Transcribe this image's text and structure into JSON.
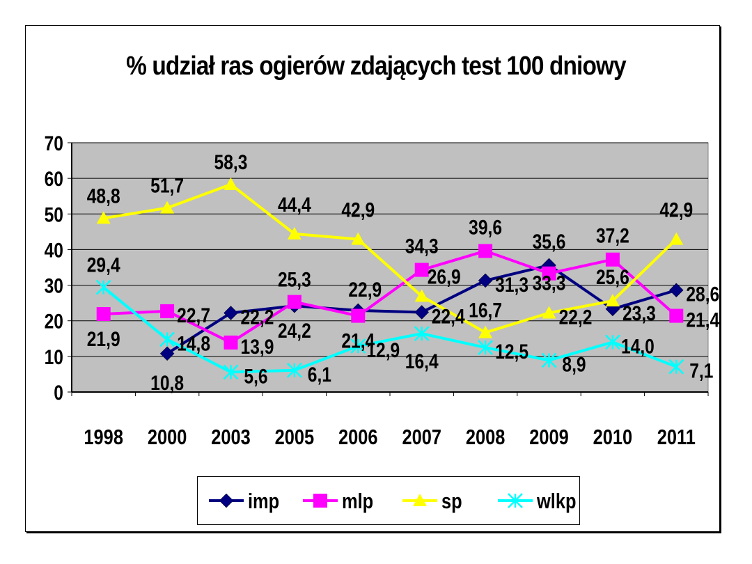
{
  "chart_data": {
    "type": "line",
    "title": "% udział ras ogierów zdających test 100 dniowy",
    "categories": [
      "1998",
      "2000",
      "2003",
      "2005",
      "2006",
      "2007",
      "2008",
      "2009",
      "2010",
      "2011"
    ],
    "ylim": [
      0,
      70
    ],
    "yticks": [
      "0",
      "10",
      "20",
      "30",
      "40",
      "50",
      "60",
      "70"
    ],
    "grid": true,
    "plot_background": "#c0c0c0",
    "legend_position": "bottom",
    "series": [
      {
        "name": "imp",
        "color": "#000080",
        "marker": "diamond",
        "values": [
          null,
          10.8,
          22.2,
          24.2,
          22.9,
          22.4,
          31.3,
          35.6,
          23.3,
          28.6
        ],
        "labels": [
          "",
          "10,8",
          "22,2",
          "24,2",
          "22,9",
          "22,4",
          "31,3",
          "35,6",
          "23,3",
          "28,6"
        ]
      },
      {
        "name": "mlp",
        "color": "#ff00ff",
        "marker": "square",
        "values": [
          21.9,
          22.7,
          13.9,
          25.3,
          21.4,
          34.3,
          39.6,
          33.3,
          37.2,
          21.4
        ],
        "labels": [
          "21,9",
          "22,7",
          "13,9",
          "25,3",
          "21,4",
          "34,3",
          "39,6",
          "33,3",
          "37,2",
          "21,4"
        ]
      },
      {
        "name": "sp",
        "color": "#ffff00",
        "marker": "triangle",
        "values": [
          48.8,
          51.7,
          58.3,
          44.4,
          42.9,
          26.9,
          16.7,
          22.2,
          25.6,
          42.9
        ],
        "labels": [
          "48,8",
          "51,7",
          "58,3",
          "44,4",
          "42,9",
          "26,9",
          "16,7",
          "22,2",
          "25,6",
          "42,9"
        ]
      },
      {
        "name": "wlkp",
        "color": "#00ffff",
        "marker": "star",
        "values": [
          29.4,
          14.8,
          5.6,
          6.1,
          12.9,
          16.4,
          12.5,
          8.9,
          14.0,
          7.1
        ],
        "labels": [
          "29,4",
          "14,8",
          "5,6",
          "6,1",
          "12,9",
          "16,4",
          "12,5",
          "8,9",
          "14,0",
          "7,1"
        ]
      }
    ]
  }
}
